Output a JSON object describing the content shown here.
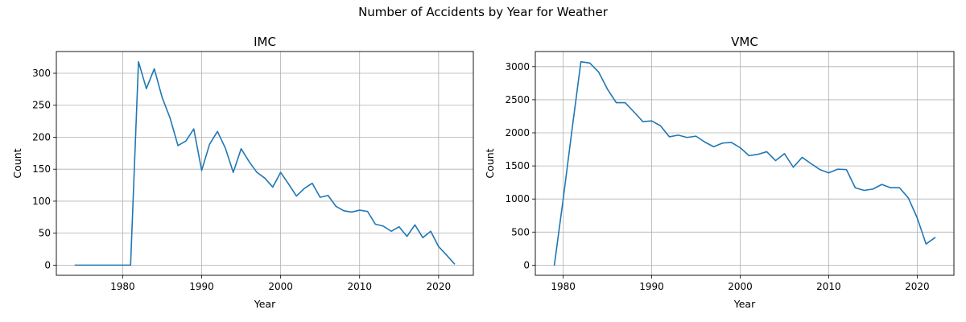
{
  "figure": {
    "suptitle": "Number of Accidents by Year for Weather",
    "line_color": "#1f77b4",
    "grid_color": "#b0b0b0"
  },
  "chart_data": [
    {
      "type": "line",
      "title": "IMC",
      "xlabel": "Year",
      "ylabel": "Count",
      "grid": true,
      "xlim": [
        1971.6,
        2024.4
      ],
      "ylim": [
        -15.9,
        334.0
      ],
      "xticks": [
        1980,
        1990,
        2000,
        2010,
        2020
      ],
      "yticks": [
        0,
        50,
        100,
        150,
        200,
        250,
        300
      ],
      "series": [
        {
          "name": "IMC",
          "x": [
            1974,
            1975,
            1976,
            1977,
            1978,
            1979,
            1980,
            1981,
            1982,
            1983,
            1984,
            1985,
            1986,
            1987,
            1988,
            1989,
            1990,
            1991,
            1992,
            1993,
            1994,
            1995,
            1996,
            1997,
            1998,
            1999,
            2000,
            2001,
            2002,
            2003,
            2004,
            2005,
            2006,
            2007,
            2008,
            2009,
            2010,
            2011,
            2012,
            2013,
            2014,
            2015,
            2016,
            2017,
            2018,
            2019,
            2020,
            2021,
            2022
          ],
          "y": [
            0,
            0,
            0,
            0,
            0,
            0,
            0,
            0,
            318,
            276,
            307,
            262,
            230,
            187,
            194,
            213,
            148,
            189,
            209,
            183,
            145,
            182,
            162,
            145,
            136,
            122,
            145,
            127,
            108,
            120,
            128,
            106,
            109,
            92,
            85,
            83,
            86,
            84,
            64,
            61,
            53,
            60,
            45,
            63,
            43,
            53,
            29,
            16,
            2
          ]
        }
      ]
    },
    {
      "type": "line",
      "title": "VMC",
      "xlabel": "Year",
      "ylabel": "Count",
      "grid": true,
      "xlim": [
        1976.85,
        2024.15
      ],
      "ylim": [
        -153.5,
        3229.0
      ],
      "xticks": [
        1980,
        1990,
        2000,
        2010,
        2020
      ],
      "yticks": [
        0,
        500,
        1000,
        1500,
        2000,
        2500,
        3000
      ],
      "series": [
        {
          "name": "VMC",
          "x": [
            1979,
            1980,
            1981,
            1982,
            1983,
            1984,
            1985,
            1986,
            1987,
            1988,
            1989,
            1990,
            1991,
            1992,
            1993,
            1994,
            1995,
            1996,
            1997,
            1998,
            1999,
            2000,
            2001,
            2002,
            2003,
            2004,
            2005,
            2006,
            2007,
            2008,
            2009,
            2010,
            2011,
            2012,
            2013,
            2014,
            2015,
            2016,
            2017,
            2018,
            2019,
            2020,
            2021,
            2022
          ],
          "y": [
            0,
            1000,
            2050,
            3075,
            3055,
            2920,
            2660,
            2455,
            2455,
            2315,
            2170,
            2180,
            2105,
            1940,
            1965,
            1930,
            1950,
            1860,
            1790,
            1845,
            1855,
            1775,
            1655,
            1675,
            1715,
            1580,
            1685,
            1480,
            1630,
            1535,
            1445,
            1395,
            1450,
            1445,
            1170,
            1130,
            1150,
            1220,
            1170,
            1170,
            1015,
            715,
            320,
            415
          ]
        }
      ]
    }
  ]
}
